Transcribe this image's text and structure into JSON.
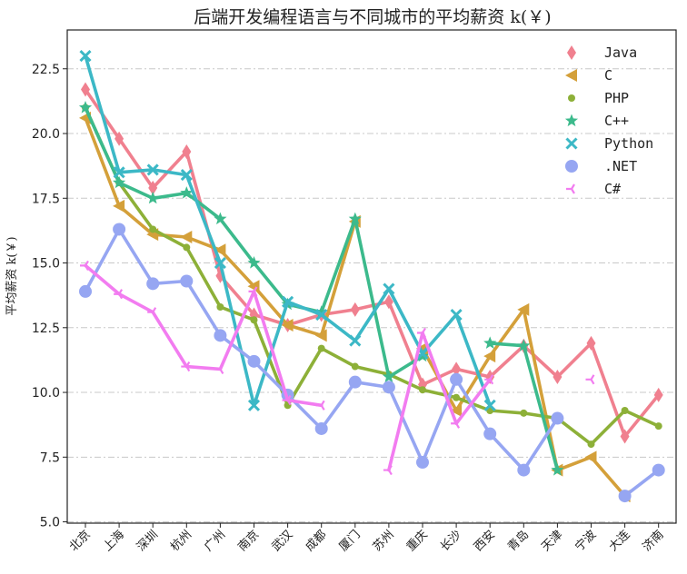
{
  "chart_data": {
    "type": "line",
    "title": "后端开发编程语言与不同城市的平均薪资 k(￥)",
    "xlabel": "",
    "ylabel": "平均薪资 k(￥)",
    "ylim": [
      4.95,
      24.0
    ],
    "yticks": [
      "5.0",
      "7.5",
      "10.0",
      "12.5",
      "15.0",
      "17.5",
      "20.0",
      "22.5"
    ],
    "grid": "horizontal dash-dot",
    "legend_position": "top-right",
    "categories": [
      "北京",
      "上海",
      "深圳",
      "杭州",
      "广州",
      "南京",
      "武汉",
      "成都",
      "厦门",
      "苏州",
      "重庆",
      "长沙",
      "西安",
      "青岛",
      "天津",
      "宁波",
      "大连",
      "济南"
    ],
    "series": [
      {
        "name": "Java",
        "color": "#f0808f",
        "marker": "diamond",
        "values": [
          21.7,
          19.8,
          17.9,
          19.3,
          14.5,
          13.0,
          12.6,
          13.0,
          13.2,
          13.5,
          10.3,
          10.9,
          10.6,
          11.8,
          10.6,
          11.9,
          8.3,
          9.9
        ]
      },
      {
        "name": "C",
        "color": "#d4a03a",
        "marker": "triangle-left",
        "values": [
          20.6,
          17.2,
          16.1,
          16.0,
          15.5,
          14.1,
          12.6,
          12.2,
          16.6,
          null,
          11.7,
          9.3,
          11.4,
          13.2,
          7.0,
          7.5,
          6.0,
          null
        ]
      },
      {
        "name": "PHP",
        "color": "#8db038",
        "marker": "circle",
        "values": [
          21.0,
          18.1,
          16.3,
          15.6,
          13.3,
          12.8,
          9.5,
          11.7,
          11.0,
          10.7,
          10.1,
          9.8,
          9.3,
          9.2,
          9.0,
          8.0,
          9.3,
          8.7
        ]
      },
      {
        "name": "C++",
        "color": "#3cba8c",
        "marker": "star",
        "values": [
          21.0,
          18.1,
          17.5,
          17.7,
          16.7,
          15.0,
          13.4,
          13.1,
          16.7,
          10.6,
          11.4,
          null,
          11.9,
          11.8,
          7.0,
          null,
          null,
          null
        ]
      },
      {
        "name": "Python",
        "color": "#3cb8c6",
        "marker": "x",
        "values": [
          23.0,
          18.5,
          18.6,
          18.4,
          15.0,
          9.5,
          13.5,
          13.0,
          12.0,
          14.0,
          11.5,
          13.0,
          9.5,
          null,
          null,
          null,
          null,
          null
        ]
      },
      {
        "name": ".NET",
        "color": "#96a6f2",
        "marker": "circle-large",
        "values": [
          13.9,
          16.3,
          14.2,
          14.3,
          12.2,
          11.2,
          9.9,
          8.6,
          10.4,
          10.2,
          7.3,
          10.5,
          8.4,
          7.0,
          9.0,
          null,
          6.0,
          7.0
        ]
      },
      {
        "name": "C#",
        "color": "#f27cf0",
        "marker": "tri-left",
        "values": [
          14.9,
          13.8,
          13.1,
          11.0,
          10.9,
          13.9,
          9.7,
          9.5,
          null,
          7.0,
          12.3,
          8.8,
          10.5,
          null,
          null,
          10.5,
          null,
          null
        ]
      }
    ]
  }
}
